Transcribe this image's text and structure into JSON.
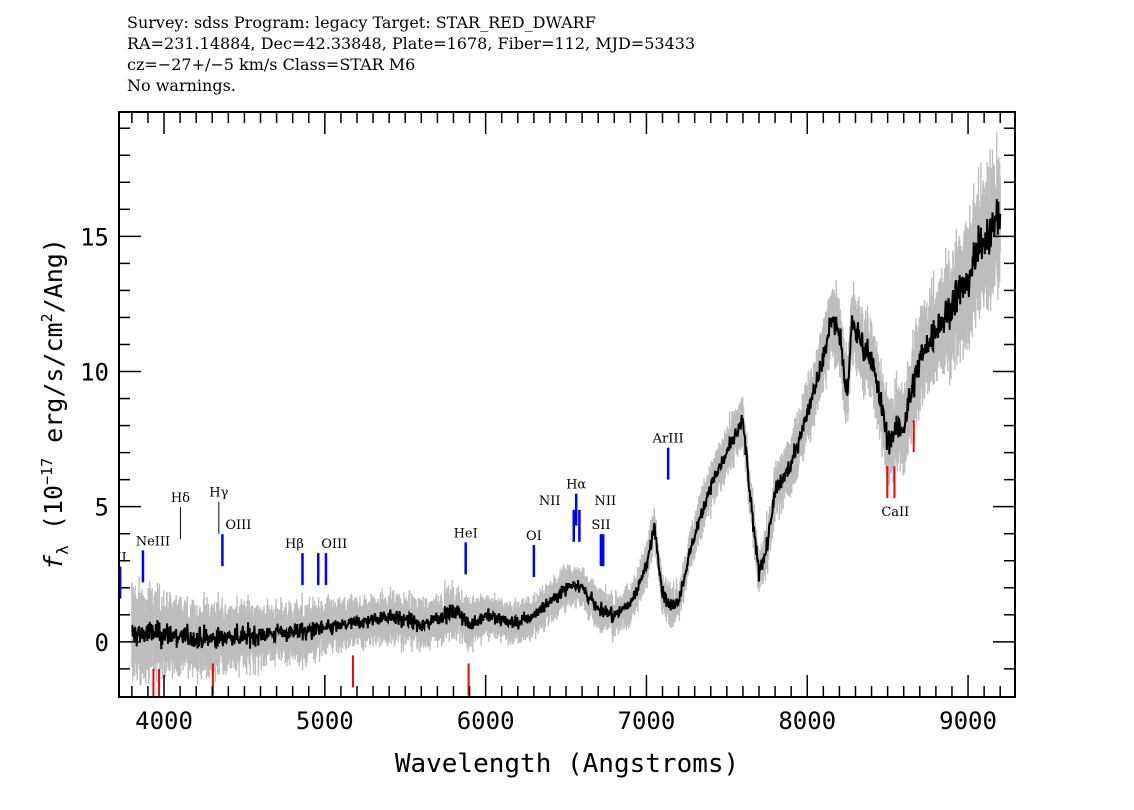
{
  "header": {
    "line1": "Survey: sdss Program: legacy Target: STAR_RED_DWARF",
    "line2": "RA=231.14884, Dec=42.33848, Plate=1678, Fiber=112, MJD=53433",
    "line3": "cz=−27+/−5 km/s Class=STAR M6",
    "line4": "No warnings."
  },
  "chart_data": {
    "type": "line",
    "xlabel": "Wavelength (Angstroms)",
    "ylabel": "f_λ (10^-17 erg/s/cm^2/Ang)",
    "xlim": [
      3720,
      9292
    ],
    "ylim": [
      -2.04,
      19.6
    ],
    "xticks": [
      4000,
      5000,
      6000,
      7000,
      8000,
      9000
    ],
    "yticks": [
      0,
      5,
      10,
      15
    ],
    "grid": false,
    "colors": {
      "flux": "#000000",
      "error_band": "#bdbdbd",
      "emission": "#0000ff",
      "absorption": "#ff0000"
    },
    "x": [
      3800,
      3900,
      4000,
      4100,
      4200,
      4300,
      4400,
      4500,
      4600,
      4700,
      4800,
      4900,
      5000,
      5100,
      5200,
      5300,
      5400,
      5500,
      5600,
      5700,
      5800,
      5850,
      5900,
      6000,
      6100,
      6200,
      6300,
      6400,
      6500,
      6550,
      6600,
      6700,
      6800,
      6900,
      7000,
      7050,
      7100,
      7150,
      7200,
      7300,
      7400,
      7500,
      7600,
      7650,
      7700,
      7750,
      7800,
      7900,
      8000,
      8100,
      8150,
      8200,
      8250,
      8280,
      8300,
      8400,
      8500,
      8600,
      8700,
      8800,
      8900,
      9000,
      9100,
      9200
    ],
    "flux": [
      0.3,
      0.3,
      0.3,
      0.2,
      0.1,
      0.1,
      0.2,
      0.2,
      0.3,
      0.3,
      0.4,
      0.4,
      0.5,
      0.6,
      0.7,
      0.8,
      1.0,
      0.8,
      0.6,
      0.9,
      1.1,
      1.0,
      0.6,
      1.0,
      0.8,
      0.7,
      1.0,
      1.5,
      2.0,
      2.2,
      2.0,
      1.2,
      1.0,
      1.4,
      2.8,
      4.3,
      1.8,
      1.3,
      1.5,
      4.0,
      5.8,
      7.0,
      8.2,
      5.0,
      2.6,
      3.5,
      5.5,
      6.6,
      8.5,
      10.5,
      12.0,
      11.5,
      9.0,
      12.0,
      11.5,
      10.5,
      7.5,
      8.0,
      10.5,
      11.5,
      12.5,
      13.5,
      15.0,
      15.8
    ],
    "noise": [
      1.2,
      1.1,
      1.0,
      0.9,
      0.9,
      0.9,
      0.8,
      0.8,
      0.7,
      0.7,
      0.7,
      0.7,
      0.6,
      0.6,
      0.6,
      0.6,
      0.6,
      0.6,
      0.6,
      0.6,
      0.6,
      0.6,
      0.6,
      0.5,
      0.5,
      0.5,
      0.5,
      0.5,
      0.5,
      0.5,
      0.5,
      0.5,
      0.5,
      0.5,
      0.5,
      0.5,
      0.5,
      0.5,
      0.5,
      0.5,
      0.6,
      0.6,
      0.6,
      0.6,
      0.6,
      0.6,
      0.7,
      0.7,
      0.8,
      0.8,
      0.9,
      0.9,
      0.9,
      0.9,
      0.9,
      1.0,
      1.0,
      1.1,
      1.2,
      1.3,
      1.4,
      1.5,
      1.6,
      1.7
    ],
    "emission_lines": [
      {
        "label": "OII",
        "wave": 3727,
        "y": 1.6
      },
      {
        "label": "NeIII",
        "wave": 3869,
        "y": 2.2
      },
      {
        "label": "Hδ",
        "wave": 4102,
        "y": 3.8
      },
      {
        "label": "Hγ",
        "wave": 4341,
        "y": 4.0
      },
      {
        "label": "OIII",
        "wave": 4363,
        "y": 2.8
      },
      {
        "label": "Hβ",
        "wave": 4861,
        "y": 2.1
      },
      {
        "label": "OIII",
        "wave": 4959,
        "y": 2.1
      },
      {
        "label": "",
        "wave": 5007,
        "y": 2.1
      },
      {
        "label": "HeI",
        "wave": 5876,
        "y": 2.5
      },
      {
        "label": "OI",
        "wave": 6300,
        "y": 2.4
      },
      {
        "label": "NII",
        "wave": 6548,
        "y": 3.7
      },
      {
        "label": "Hα",
        "wave": 6563,
        "y": 4.3
      },
      {
        "label": "NII",
        "wave": 6583,
        "y": 3.7
      },
      {
        "label": "SII",
        "wave": 6717,
        "y": 2.8
      },
      {
        "label": "",
        "wave": 6731,
        "y": 2.8
      },
      {
        "label": "ArIII",
        "wave": 7135,
        "y": 6.0
      }
    ],
    "absorption_lines": [
      {
        "label": "",
        "wave": 3934,
        "y": -1.0
      },
      {
        "label": "",
        "wave": 3969,
        "y": -1.0
      },
      {
        "label": "",
        "wave": 4304,
        "y": -0.8
      },
      {
        "label": "",
        "wave": 5175,
        "y": -0.5
      },
      {
        "label": "",
        "wave": 5894,
        "y": -0.8
      },
      {
        "label": "CaII",
        "wave": 8498,
        "y": 6.5
      },
      {
        "label": "",
        "wave": 8542,
        "y": 6.5
      },
      {
        "label": "",
        "wave": 8662,
        "y": 8.2
      }
    ]
  }
}
